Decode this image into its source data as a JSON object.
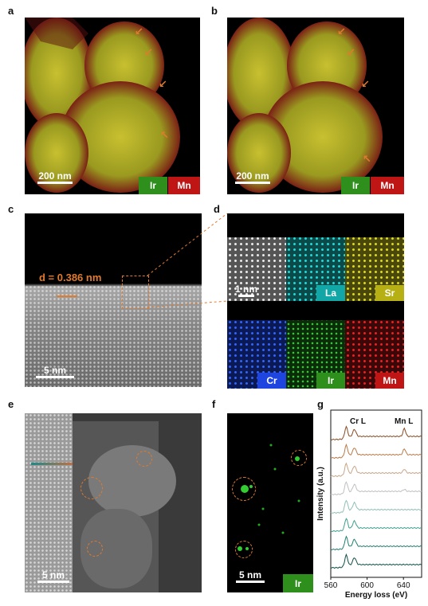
{
  "panels": {
    "a": {
      "label": "a",
      "scale": "200 nm",
      "legend": [
        "Ir",
        "Mn"
      ]
    },
    "b": {
      "label": "b",
      "scale": "200 nm",
      "legend": [
        "Ir",
        "Mn"
      ]
    },
    "c": {
      "label": "c",
      "annotation": "d = 0.386 nm",
      "scale": "5 nm"
    },
    "d": {
      "label": "d",
      "scale": "1 nm",
      "elements": [
        "La",
        "Sr",
        "Cr",
        "Ir",
        "Mn"
      ]
    },
    "e": {
      "label": "e",
      "scale": "5 nm"
    },
    "f": {
      "label": "f",
      "scale": "5 nm",
      "legend": "Ir"
    },
    "g": {
      "label": "g",
      "peaks": [
        "Cr L",
        "Mn L"
      ]
    }
  },
  "colors": {
    "ir_green": "#2f8f1d",
    "mn_red": "#c01515",
    "la_cyan": "#13a6a6",
    "sr_yellow": "#b6b015",
    "cr_blue": "#1f45e0",
    "annotation_orange": "#e07a2e"
  },
  "chart_data": {
    "type": "line",
    "title": "",
    "xlabel": "Energy loss (eV)",
    "ylabel": "Intensity (a.u.)",
    "xlim": [
      560,
      660
    ],
    "xticks": [
      560,
      600,
      640
    ],
    "annotations": [
      "Cr L",
      "Mn L"
    ],
    "series": [
      {
        "color": "#8a4a22",
        "offset": 8
      },
      {
        "color": "#b97a4a",
        "offset": 7
      },
      {
        "color": "#c9a585",
        "offset": 6
      },
      {
        "color": "#bfbfbf",
        "offset": 5
      },
      {
        "color": "#8fbfb7",
        "offset": 4
      },
      {
        "color": "#3f9f8f",
        "offset": 3
      },
      {
        "color": "#1f7f6f",
        "offset": 2
      },
      {
        "color": "#0f4f45",
        "offset": 1
      }
    ]
  }
}
